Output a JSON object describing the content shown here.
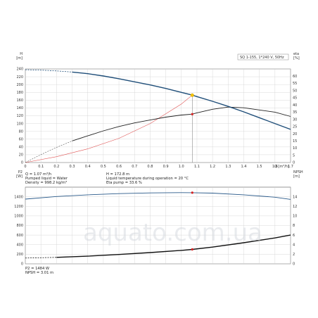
{
  "colors": {
    "head_curve": "#1f4e79",
    "eta_curve": "#222222",
    "npsh_curve": "#111111",
    "p2_curve": "#2a5a8a",
    "system_curve": "#e05555",
    "op_point": "#d62020",
    "op_point_head": "#f5c400",
    "grid": "#d0d0d0"
  },
  "watermark": "aquato.com.ua",
  "chart_data": [
    {
      "type": "line",
      "name": "top",
      "title": "SQ 1-155, 1*240 V, 50Hz",
      "ylabel_left": [
        "H",
        "[m]"
      ],
      "ylabel_right": [
        "eta",
        "[%]"
      ],
      "xlabel": "Q [m³/h]",
      "xlim": [
        0,
        1.7
      ],
      "ylim_left": [
        0,
        240
      ],
      "ylim_right": [
        0,
        65
      ],
      "x_ticks": [
        "0",
        "0.1",
        "0.2",
        "0.3",
        "0.4",
        "0.5",
        "0.6",
        "0.7",
        "0.8",
        "0.9",
        "1.0",
        "1.1",
        "1.2",
        "1.3",
        "1.4",
        "1.5",
        "1.6",
        "1.7"
      ],
      "y_ticks_left": [
        "0",
        "20",
        "40",
        "60",
        "80",
        "100",
        "120",
        "140",
        "160",
        "180",
        "200",
        "220",
        "240"
      ],
      "y_ticks_right": [
        "0",
        "5",
        "10",
        "15",
        "20",
        "25",
        "30",
        "35",
        "40",
        "45",
        "50",
        "55",
        "60"
      ],
      "series": [
        {
          "key": "head",
          "axis": "left",
          "x": [
            0,
            0.1,
            0.2,
            0.3,
            0.4,
            0.5,
            0.6,
            0.7,
            0.8,
            0.9,
            1.0,
            1.07,
            1.1,
            1.2,
            1.3,
            1.4,
            1.5,
            1.6,
            1.7
          ],
          "y": [
            238,
            237,
            235,
            232,
            228,
            222,
            215,
            207,
            199,
            190,
            180,
            172.8,
            169,
            157,
            144,
            130,
            115,
            100,
            85
          ],
          "dashed_until": 0.33
        },
        {
          "key": "eta",
          "axis": "right",
          "x": [
            0,
            0.1,
            0.2,
            0.3,
            0.4,
            0.5,
            0.6,
            0.7,
            0.8,
            0.9,
            1.0,
            1.07,
            1.1,
            1.2,
            1.3,
            1.4,
            1.5,
            1.6,
            1.7
          ],
          "y": [
            0,
            5.5,
            10.5,
            15,
            18.5,
            22,
            25,
            27.5,
            29.5,
            31.5,
            33,
            33.6,
            34.5,
            37,
            38.5,
            38,
            36.5,
            35,
            32
          ],
          "dashed_until": 0.33
        },
        {
          "key": "system",
          "axis": "left",
          "x": [
            0,
            0.2,
            0.4,
            0.6,
            0.8,
            0.9,
            1.0,
            1.07
          ],
          "y": [
            0,
            15,
            35,
            62,
            100,
            125,
            150,
            172.8
          ]
        }
      ],
      "operating_point": {
        "x": 1.07,
        "head": 172.8,
        "eta": 33.6
      },
      "info_left": [
        "Q = 1.07 m³/h",
        "Pumped liquid = Water",
        "Density = 998.2 kg/m³"
      ],
      "info_right": [
        "H = 172.8 m",
        "Liquid temperature during operation = 20 °C",
        "Eta pump = 33.6 %"
      ]
    },
    {
      "type": "line",
      "name": "bottom",
      "ylabel_left": [
        "P2",
        "[W]"
      ],
      "ylabel_right": [
        "NPSH",
        "[m]"
      ],
      "xlim": [
        0,
        1.7
      ],
      "ylim_left": [
        0,
        1600
      ],
      "ylim_right": [
        0,
        16
      ],
      "y_ticks_left": [
        "0",
        "200",
        "400",
        "600",
        "800",
        "1000",
        "1200",
        "1400"
      ],
      "y_ticks_right": [
        "0",
        "2",
        "4",
        "6",
        "8",
        "10",
        "12",
        "14"
      ],
      "series": [
        {
          "key": "p2",
          "axis": "left",
          "x": [
            0,
            0.2,
            0.4,
            0.6,
            0.8,
            1.0,
            1.07,
            1.2,
            1.4,
            1.6,
            1.7
          ],
          "y": [
            1350,
            1405,
            1440,
            1465,
            1480,
            1486,
            1484,
            1475,
            1440,
            1390,
            1345
          ]
        },
        {
          "key": "npsh",
          "axis": "right",
          "x": [
            0,
            0.2,
            0.4,
            0.6,
            0.8,
            1.0,
            1.07,
            1.2,
            1.4,
            1.6,
            1.7
          ],
          "y": [
            1.2,
            1.35,
            1.6,
            1.95,
            2.35,
            2.8,
            3.01,
            3.5,
            4.4,
            5.4,
            6.0
          ],
          "dashed_until": 0.33
        }
      ],
      "operating_point": {
        "x": 1.07,
        "p2": 1484,
        "npsh": 3.01
      },
      "info": [
        "P2 = 1484 W",
        "NPSH = 3.01 m"
      ]
    }
  ]
}
